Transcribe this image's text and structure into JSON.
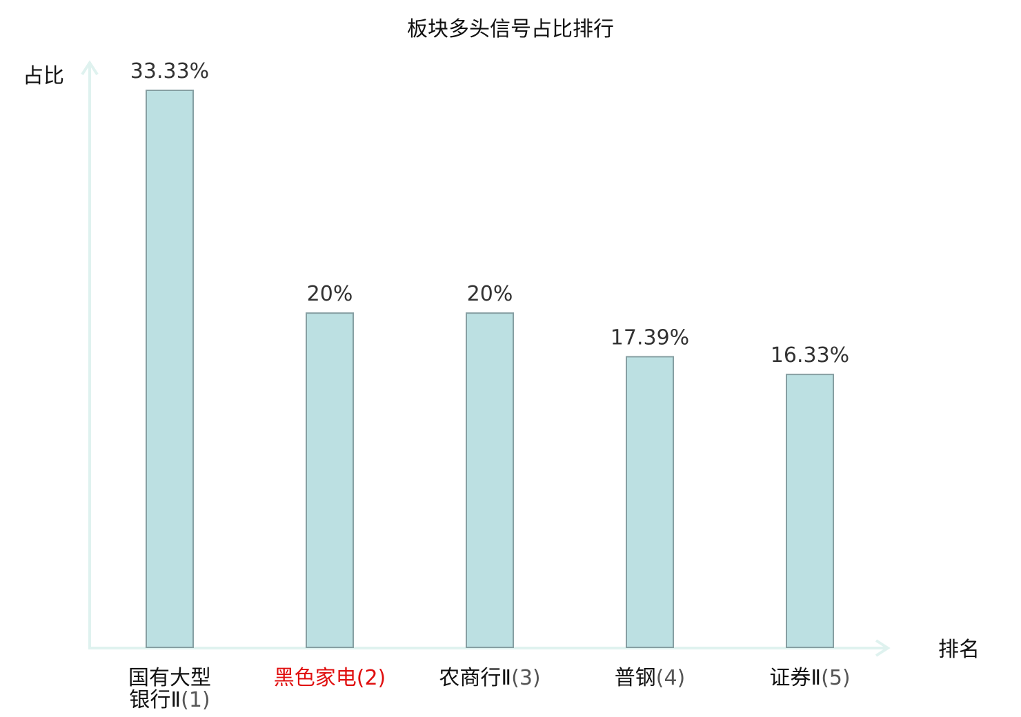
{
  "chart_data": {
    "type": "bar",
    "title": "板块多头信号占比排行",
    "xlabel": "排名",
    "ylabel": "占比",
    "categories": [
      {
        "lines": [
          "国有大型",
          "银行Ⅱ"
        ],
        "rank": "(1)",
        "highlight": false
      },
      {
        "lines": [
          "黑色家电"
        ],
        "rank": "(2)",
        "highlight": true
      },
      {
        "lines": [
          "农商行Ⅱ"
        ],
        "rank": "(3)",
        "highlight": false
      },
      {
        "lines": [
          "普钢"
        ],
        "rank": "(4)",
        "highlight": false
      },
      {
        "lines": [
          "证券Ⅱ"
        ],
        "rank": "(5)",
        "highlight": false
      }
    ],
    "values": [
      33.33,
      20,
      20,
      17.39,
      16.33
    ],
    "value_labels": [
      "33.33%",
      "20%",
      "20%",
      "17.39%",
      "16.33%"
    ],
    "ylim": [
      0,
      33.33
    ],
    "grid": false,
    "colors": {
      "bar_fill": "#bce0e2",
      "bar_stroke": "#869fa2",
      "axis": "#dff2ef",
      "highlight": "#e01010"
    }
  }
}
